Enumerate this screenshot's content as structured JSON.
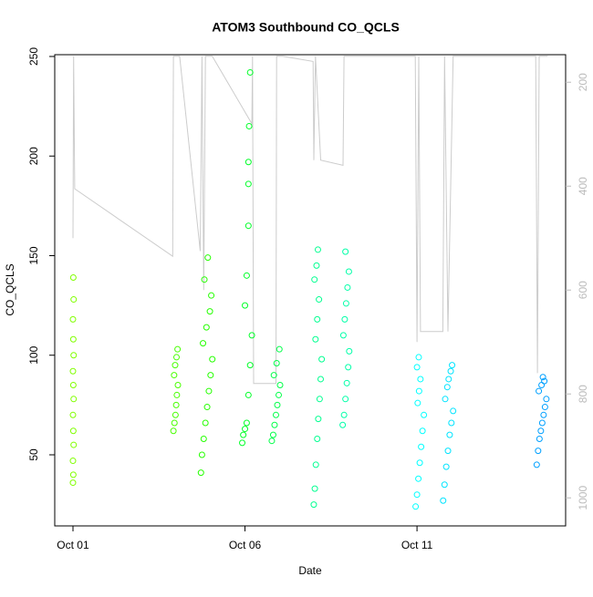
{
  "chart_data": {
    "type": "scatter",
    "title": "ATOM3 Southbound CO_QCLS",
    "x_label": "Date",
    "y_label": "CO_QCLS",
    "xlim": [
      0.47,
      15.32
    ],
    "ylim": [
      14.3,
      250.9
    ],
    "y2lim": [
      1054,
      147
    ],
    "xticks": [
      {
        "value": 1,
        "label": "Oct 01"
      },
      {
        "value": 6,
        "label": "Oct 06"
      },
      {
        "value": 11,
        "label": "Oct 11"
      }
    ],
    "yticks": [
      50,
      100,
      150,
      200,
      250
    ],
    "y2ticks": [
      200,
      400,
      600,
      800,
      1000
    ],
    "series": [
      {
        "color": "#80ff00",
        "x": [
          1.0,
          1.01,
          1.0,
          1.02,
          1.01,
          1.0,
          1.02,
          1.01,
          1.0,
          1.02,
          1.01,
          1.0,
          1.02,
          1.01
        ],
        "values": [
          36,
          40,
          47,
          55,
          62,
          70,
          78,
          85,
          92,
          100,
          108,
          118,
          128,
          139
        ]
      },
      {
        "color": "#48ff00",
        "x": [
          3.92,
          3.95,
          3.98,
          4.0,
          4.02,
          4.05,
          3.94,
          3.97,
          4.01,
          4.04
        ],
        "values": [
          62,
          66,
          70,
          75,
          80,
          85,
          90,
          95,
          99,
          103
        ]
      },
      {
        "color": "#25ff00",
        "x": [
          4.72,
          4.75,
          4.8,
          4.85,
          4.9,
          4.95,
          5.0,
          5.05,
          4.78,
          4.88,
          4.98,
          5.02,
          4.82,
          4.92
        ],
        "values": [
          41,
          50,
          58,
          66,
          74,
          82,
          90,
          98,
          106,
          114,
          122,
          130,
          138,
          149
        ]
      },
      {
        "color": "#00ff28",
        "x": [
          5.92,
          5.95,
          6.0,
          6.05,
          6.1,
          6.15,
          6.2,
          6.0,
          6.05,
          6.1,
          6.1,
          6.1,
          6.12,
          6.15
        ],
        "values": [
          56,
          60,
          63,
          66,
          80,
          95,
          110,
          125,
          140,
          165,
          186,
          197,
          215,
          242
        ]
      },
      {
        "color": "#00ff48",
        "x": [
          6.78,
          6.82,
          6.86,
          6.9,
          6.94,
          6.98,
          7.02,
          6.84,
          6.92,
          7.0
        ],
        "values": [
          57,
          60,
          65,
          70,
          75,
          80,
          85,
          90,
          96,
          103
        ]
      },
      {
        "color": "#00ff90",
        "x": [
          8.0,
          8.03,
          8.06,
          8.1,
          8.13,
          8.17,
          8.2,
          8.23,
          8.05,
          8.1,
          8.15,
          8.02,
          8.08,
          8.12
        ],
        "values": [
          25,
          33,
          45,
          58,
          68,
          78,
          88,
          98,
          108,
          118,
          128,
          138,
          145,
          153
        ]
      },
      {
        "color": "#00ffa8",
        "x": [
          8.84,
          8.88,
          8.92,
          8.96,
          9.0,
          9.03,
          8.86,
          8.9,
          8.94,
          8.98,
          9.02,
          8.92
        ],
        "values": [
          65,
          70,
          78,
          86,
          94,
          102,
          110,
          118,
          126,
          134,
          142,
          152
        ]
      },
      {
        "color": "#00ffff",
        "x": [
          10.96,
          11.0,
          11.04,
          11.08,
          11.12,
          11.16,
          11.2,
          11.02,
          11.06,
          11.1,
          11.0,
          11.05
        ],
        "values": [
          24,
          30,
          38,
          46,
          54,
          62,
          70,
          76,
          82,
          88,
          94,
          99
        ]
      },
      {
        "color": "#00e4ff",
        "x": [
          11.76,
          11.8,
          11.85,
          11.9,
          11.95,
          12.0,
          12.05,
          11.82,
          11.88,
          11.92,
          11.98,
          12.02
        ],
        "values": [
          27,
          35,
          44,
          52,
          60,
          66,
          72,
          78,
          84,
          88,
          92,
          95
        ]
      },
      {
        "color": "#00a0ff",
        "x": [
          14.48,
          14.52,
          14.56,
          14.6,
          14.64,
          14.68,
          14.72,
          14.76,
          14.54,
          14.62,
          14.7,
          14.66
        ],
        "values": [
          45,
          52,
          58,
          62,
          66,
          70,
          74,
          78,
          82,
          85,
          87,
          89
        ]
      }
    ],
    "line": {
      "axis": "y2",
      "color": "#cccccc",
      "x": [
        1.0,
        1.02,
        1.05,
        3.9,
        3.92,
        4.1,
        4.7,
        4.75,
        4.8,
        4.85,
        5.05,
        6.2,
        6.22,
        6.25,
        6.9,
        6.92,
        7.1,
        7.98,
        8.0,
        8.05,
        8.2,
        8.85,
        8.88,
        9.05,
        10.95,
        11.0,
        11.05,
        11.1,
        11.75,
        11.8,
        11.9,
        12.05,
        14.45,
        14.5,
        14.55,
        14.8
      ],
      "values": [
        500,
        150,
        405,
        535,
        150,
        150,
        525,
        150,
        600,
        150,
        150,
        280,
        150,
        780,
        780,
        150,
        150,
        160,
        350,
        150,
        350,
        360,
        150,
        150,
        150,
        700,
        150,
        680,
        680,
        150,
        680,
        150,
        150,
        760,
        150,
        150
      ]
    }
  }
}
